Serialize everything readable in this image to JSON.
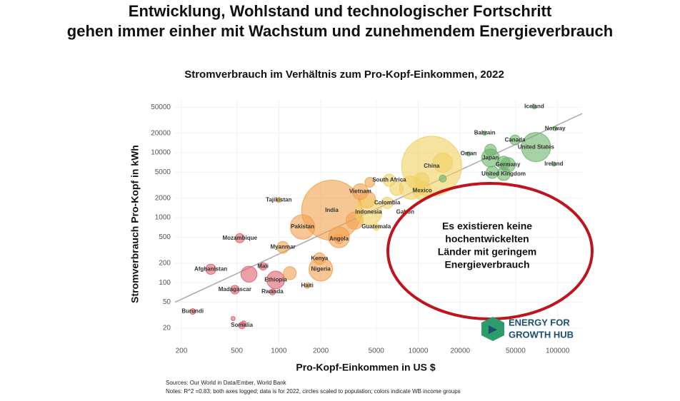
{
  "chart_data": {
    "type": "scatter",
    "title": [
      "Entwicklung, Wohlstand und technologischer Fortschritt",
      "gehen immer einher mit Wachstum und zunehmendem Energieverbrauch"
    ],
    "subtitle": "Stromverbrauch im Verhältnis zum Pro-Kopf-Einkommen, 2022",
    "x_label": "Pro-Kopf-Einkommen in US $",
    "y_label": "Stromverbrauch Pro-Kopf in kWh",
    "log_x": true,
    "log_y": true,
    "grid": true,
    "xlim": [
      180,
      150000
    ],
    "ylim": [
      12,
      65000
    ],
    "xticks": [
      200,
      500,
      1000,
      2000,
      5000,
      10000,
      20000,
      50000,
      100000
    ],
    "yticks": [
      20,
      50,
      100,
      200,
      500,
      1000,
      2000,
      5000,
      10000,
      20000,
      50000
    ],
    "trendline": {
      "color": "#aaaaaa",
      "x": [
        180,
        150000
      ],
      "y": [
        50,
        40000
      ]
    },
    "series": [
      {
        "color": "#e0606e",
        "labels": [
          "Mozambique",
          "Afghanistan",
          "Mali",
          "Ethiopia",
          "Madagascar",
          "Rwanda",
          "Burundi",
          "Somalia",
          null,
          null,
          null
        ],
        "x": [
          525,
          325,
          770,
          950,
          484,
          900,
          241,
          543,
          611,
          470,
          560
        ],
        "y": [
          484,
          161,
          178,
          110,
          78,
          72,
          36,
          22,
          135,
          28,
          24
        ],
        "sizes": [
          33,
          41,
          22,
          123,
          30,
          14,
          13,
          17,
          99,
          5,
          5
        ]
      },
      {
        "color": "#f2a04e",
        "labels": [
          "Tajikistan",
          "Pakistan",
          "Angola",
          "Myanmar",
          "Kenya",
          "Nigeria",
          "Haiti",
          "India",
          "Vietnam",
          null,
          null,
          null,
          null,
          null
        ],
        "x": [
          1000,
          1480,
          2700,
          1070,
          1960,
          2000,
          1600,
          2400,
          3840,
          2700,
          4300,
          3500,
          1200,
          4500
        ],
        "y": [
          1870,
          720,
          470,
          350,
          234,
          161,
          90,
          1300,
          2520,
          500,
          1900,
          900,
          140,
          3500
        ],
        "sizes": [
          10,
          235,
          35,
          54,
          54,
          218,
          12,
          1417,
          98,
          171,
          111,
          115,
          65,
          38
        ]
      },
      {
        "color": "#f0d060",
        "labels": [
          "China",
          "Mexico",
          "South Africa",
          "Gabon",
          "Colombia",
          "Indonesia",
          "Guatemala",
          null,
          null,
          null,
          null
        ],
        "x": [
          12500,
          10700,
          6200,
          8070,
          6000,
          4400,
          5000,
          8900,
          15000,
          10600,
          7000
        ],
        "y": [
          6200,
          2590,
          3770,
          1220,
          1690,
          1220,
          720,
          2900,
          7000,
          3800,
          2800
        ],
        "sizes": [
          1412,
          127,
          60,
          2.4,
          52,
          275,
          17,
          215,
          144,
          85,
          72
        ]
      },
      {
        "color": "#6ab46a",
        "labels": [
          "Iceland",
          "Norway",
          "Canada",
          "United States",
          "Ireland",
          "Bahrain",
          "Oman",
          "Japan",
          "Germany",
          "United Kingdom",
          null,
          null,
          null,
          null
        ],
        "x": [
          68000,
          96000,
          49500,
          70000,
          94000,
          30000,
          23000,
          33000,
          44000,
          41000,
          33000,
          41000,
          15000,
          34000
        ],
        "y": [
          51000,
          23500,
          15700,
          12200,
          6700,
          20000,
          9600,
          8300,
          6500,
          4700,
          11000,
          7000,
          4000,
          5000
        ],
        "sizes": [
          0.4,
          5.5,
          39,
          333,
          5,
          1.5,
          4.5,
          125,
          84,
          67,
          52,
          68,
          19,
          59
        ]
      }
    ],
    "annotation": [
      "Es existieren keine",
      "hochentwickelten",
      "Länder mit geringem",
      "Energieverbrauch"
    ],
    "logo": [
      "ENERGY FOR",
      "GROWTH HUB"
    ],
    "sources": [
      "Sources: Our World in Data/Ember, World Bank",
      "Notes: R^2 =0.83; both axes logged; data is for 2022, circles scaled to population; colors indicate WB income groups"
    ]
  }
}
